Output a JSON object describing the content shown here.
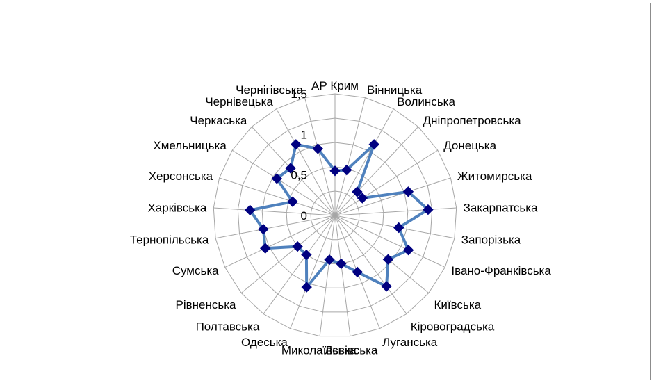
{
  "chart_data": {
    "type": "radar",
    "title": "",
    "series_color": "#4f81bd",
    "marker_color": "#000080",
    "grid_color": "#a6a6a6",
    "grid_rings": 5,
    "rmax": 1.5,
    "ticks": [
      "0",
      "0,5",
      "1",
      "1,5"
    ],
    "categories": [
      "АР Крим",
      "Вінницька",
      "Волинська",
      "Дніпропетровська",
      "Донецька",
      "Житомирська",
      "Закарпатська",
      "Запорізька",
      "Івано-Франківська",
      "Київська",
      "Кіровоградська",
      "Луганська",
      "Львівська",
      "Миколаївська",
      "Одеська",
      "Полтавська",
      "Рівненська",
      "Сумська",
      "Тернопільська",
      "Харківська",
      "Херсонська",
      "Хмельницька",
      "Черкаська",
      "Чернівецька",
      "Чернігівська"
    ],
    "values": [
      0.55,
      0.58,
      1.0,
      0.4,
      0.4,
      0.95,
      1.15,
      0.8,
      1.0,
      0.85,
      1.08,
      0.75,
      0.6,
      0.55,
      0.95,
      0.6,
      0.6,
      0.95,
      0.9,
      1.05,
      0.55,
      0.85,
      0.8,
      1.0,
      0.85
    ]
  }
}
